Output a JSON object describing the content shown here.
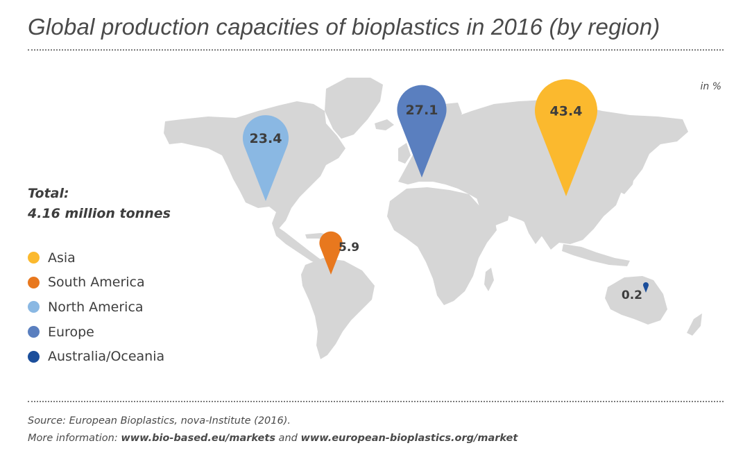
{
  "title": "Global production capacities of bioplastics in 2016 (by region)",
  "unit_label": "in %",
  "total": {
    "label": "Total:",
    "value": "4.16 million tonnes"
  },
  "chart_data": {
    "type": "map",
    "title": "Global production capacities of bioplastics in 2016 (by region)",
    "unit": "in %",
    "series": [
      {
        "name": "Asia",
        "value": 43.4,
        "label": "43.4",
        "color": "#FBB92E"
      },
      {
        "name": "South America",
        "value": 5.9,
        "label": "5.9",
        "color": "#E8781E"
      },
      {
        "name": "North America",
        "value": 23.4,
        "label": "23.4",
        "color": "#8AB8E3"
      },
      {
        "name": "Europe",
        "value": 27.1,
        "label": "27.1",
        "color": "#5A7FBF"
      },
      {
        "name": "Australia/Oceania",
        "value": 0.2,
        "label": "0.2",
        "color": "#1B4E9B"
      }
    ]
  },
  "legend": [
    {
      "label": "Asia",
      "color": "#FBB92E"
    },
    {
      "label": "South America",
      "color": "#E8781E"
    },
    {
      "label": "North America",
      "color": "#8AB8E3"
    },
    {
      "label": "Europe",
      "color": "#5A7FBF"
    },
    {
      "label": "Australia/Oceania",
      "color": "#1B4E9B"
    }
  ],
  "source": {
    "line1": "Source: European Bioplastics, nova-Institute (2016).",
    "line2_prefix": "More information: ",
    "link1": "www.bio-based.eu/markets",
    "and": " and ",
    "link2": "www.european-bioplastics.org/market"
  },
  "colors": {
    "land": "#D6D6D6",
    "text": "#3d3d3d"
  }
}
